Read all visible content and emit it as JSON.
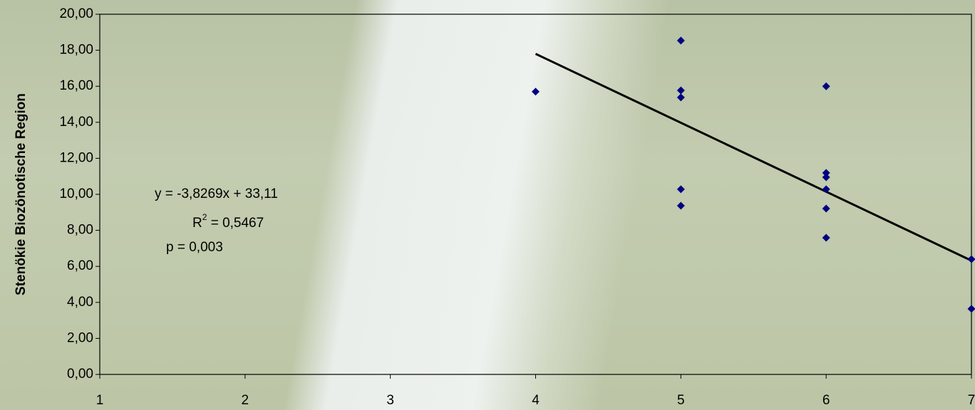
{
  "chart_data": {
    "type": "scatter",
    "y_label": "Stenökie Biozönotische Region",
    "x": [
      4,
      5,
      5,
      5,
      5,
      5,
      6,
      6,
      6,
      6,
      6,
      6,
      7,
      7
    ],
    "values": [
      15.7,
      18.54,
      15.77,
      15.38,
      10.28,
      9.37,
      16.0,
      11.19,
      10.95,
      10.28,
      9.21,
      7.59,
      6.4,
      3.64
    ],
    "color": "#000080",
    "trendline": {
      "x": [
        4,
        7
      ],
      "values": [
        17.8,
        6.32
      ],
      "color": "#000000"
    },
    "annotations": {
      "equation": "y = -3,8269x + 33,11",
      "r2_base": "R",
      "r2_sup": "2",
      "r2_rest": " = 0,5467",
      "p": "p = 0,003"
    },
    "xlim": [
      1,
      7
    ],
    "xticks": [
      1,
      2,
      3,
      4,
      5,
      6,
      7
    ],
    "ylim": [
      0,
      20
    ],
    "yticks": [
      {
        "value": 0,
        "label": "0,00"
      },
      {
        "value": 2,
        "label": "2,00"
      },
      {
        "value": 4,
        "label": "4,00"
      },
      {
        "value": 6,
        "label": "6,00"
      },
      {
        "value": 8,
        "label": "8,00"
      },
      {
        "value": 10,
        "label": "10,00"
      },
      {
        "value": 12,
        "label": "12,00"
      },
      {
        "value": 14,
        "label": "14,00"
      },
      {
        "value": 16,
        "label": "16,00"
      },
      {
        "value": 18,
        "label": "18,00"
      },
      {
        "value": 20,
        "label": "20,00"
      }
    ]
  }
}
